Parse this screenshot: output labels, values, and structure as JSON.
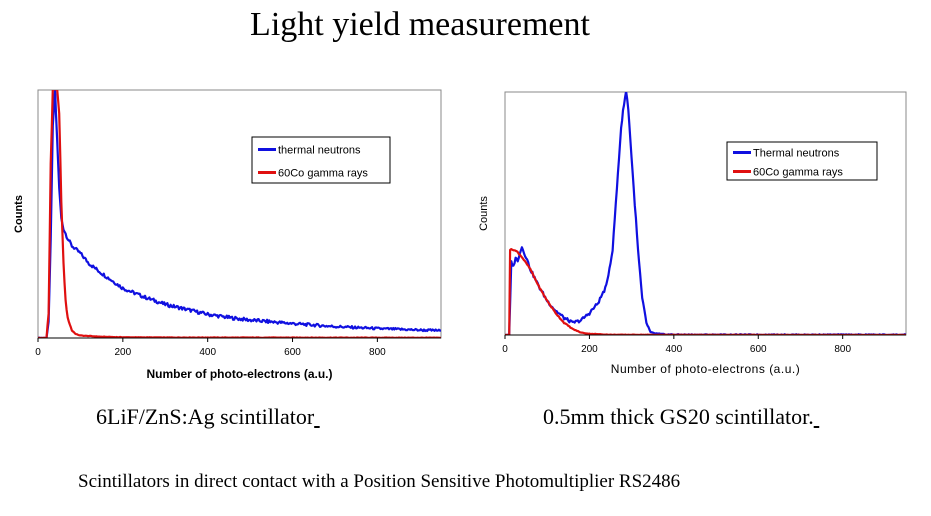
{
  "page_title": "Light yield measurement",
  "captions": {
    "left": "6LiF/ZnS:Ag scintillator",
    "right": "0.5mm thick GS20 scintillator.",
    "footer": "Scintillators in direct contact with a Position Sensitive Photomultiplier RS2486"
  },
  "chart_data": [
    {
      "type": "line",
      "xlabel": "Number of photo-electrons (a.u.)",
      "ylabel": "Counts",
      "xlim": [
        0,
        950
      ],
      "xticks": [
        0,
        200,
        400,
        600,
        800
      ],
      "ylim": [
        0,
        100
      ],
      "legend_position": "top-right",
      "series": [
        {
          "name": "thermal neutrons",
          "color": "#1010e0",
          "x": [
            0,
            20,
            25,
            30,
            35,
            40,
            45,
            50,
            55,
            60,
            70,
            80,
            100,
            120,
            150,
            175,
            200,
            250,
            300,
            350,
            400,
            450,
            500,
            550,
            600,
            650,
            700,
            750,
            800,
            850,
            900,
            950
          ],
          "y": [
            0,
            0,
            6,
            40,
            85,
            100,
            80,
            60,
            48,
            44,
            40,
            37,
            34,
            30,
            26,
            23,
            20,
            16.5,
            13.5,
            11.5,
            9.5,
            8.2,
            7.2,
            6.5,
            5.8,
            5.2,
            4.6,
            4.2,
            3.8,
            3.5,
            3.2,
            3
          ]
        },
        {
          "name": "60Co gamma rays",
          "color": "#e01010",
          "x": [
            0,
            20,
            25,
            30,
            35,
            40,
            45,
            50,
            55,
            60,
            65,
            70,
            80,
            90,
            100,
            150,
            200,
            300,
            950
          ],
          "y": [
            0,
            0,
            10,
            70,
            100,
            100,
            100,
            90,
            55,
            30,
            15,
            8,
            3,
            1.5,
            1,
            0.5,
            0.3,
            0.2,
            0.1
          ]
        }
      ]
    },
    {
      "type": "line",
      "xlabel": "Number of photo-electrons (a.u.)",
      "ylabel": "Counts",
      "xlim": [
        0,
        950
      ],
      "xticks": [
        0,
        200,
        400,
        600,
        800
      ],
      "ylim": [
        0,
        100
      ],
      "legend_position": "top-right",
      "series": [
        {
          "name": "Thermal neutrons",
          "color": "#1010e0",
          "x": [
            0,
            10,
            15,
            20,
            25,
            30,
            35,
            40,
            50,
            60,
            80,
            100,
            120,
            140,
            160,
            180,
            200,
            220,
            240,
            255,
            265,
            275,
            282,
            287,
            292,
            297,
            305,
            315,
            325,
            335,
            345,
            360,
            380,
            450,
            950
          ],
          "y": [
            0,
            0,
            30,
            28,
            32,
            30,
            34,
            36,
            32,
            27,
            20,
            14,
            10,
            7,
            5,
            6,
            9,
            13,
            20,
            35,
            60,
            85,
            95,
            100,
            93,
            80,
            60,
            35,
            15,
            5,
            1,
            0.5,
            0.2,
            0.1,
            0.1
          ]
        },
        {
          "name": "60Co gamma rays",
          "color": "#e01010",
          "x": [
            0,
            10,
            12,
            20,
            30,
            40,
            60,
            80,
            100,
            120,
            140,
            160,
            180,
            200,
            250,
            950
          ],
          "y": [
            0,
            0,
            35,
            35,
            34,
            32,
            27,
            20,
            14,
            9,
            5,
            2.5,
            1,
            0.5,
            0.1,
            0
          ]
        }
      ]
    }
  ]
}
